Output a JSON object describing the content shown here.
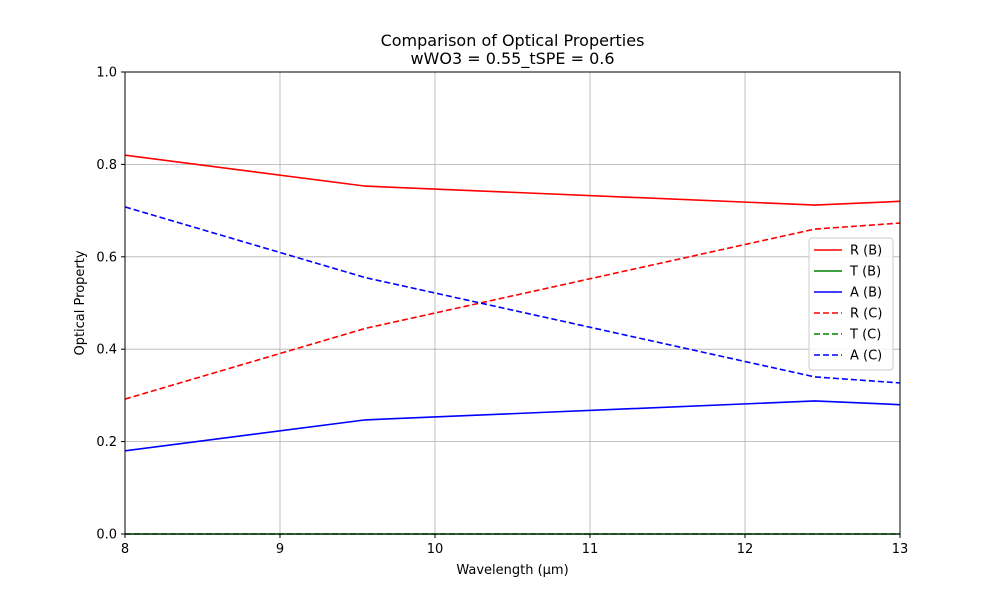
{
  "chart_data": {
    "type": "line",
    "title": "Comparison of Optical Properties",
    "subtitle": "wWO3 = 0.55_tSPE = 0.6",
    "xlabel": "Wavelength (µm)",
    "ylabel": "Optical Property",
    "xlim": [
      8,
      13
    ],
    "ylim": [
      0.0,
      1.0
    ],
    "x_ticks": [
      8,
      9,
      10,
      11,
      12,
      13
    ],
    "x_tick_labels": [
      "8",
      "9",
      "10",
      "11",
      "12",
      "13"
    ],
    "y_ticks": [
      0.0,
      0.2,
      0.4,
      0.6,
      0.8,
      1.0
    ],
    "y_tick_labels": [
      "0.0",
      "0.2",
      "0.4",
      "0.6",
      "0.8",
      "1.0"
    ],
    "grid": true,
    "legend_position": "center-right",
    "x": [
      8.0,
      9.55,
      12.45,
      13.0
    ],
    "series": [
      {
        "name": "R (B)",
        "color": "#ff0000",
        "dash": "solid",
        "values": [
          0.82,
          0.753,
          0.712,
          0.72
        ]
      },
      {
        "name": "T (B)",
        "color": "#008000",
        "dash": "solid",
        "values": [
          0.0,
          0.0,
          0.0,
          0.0
        ]
      },
      {
        "name": "A (B)",
        "color": "#0000ff",
        "dash": "solid",
        "values": [
          0.18,
          0.247,
          0.288,
          0.28
        ]
      },
      {
        "name": "R (C)",
        "color": "#ff0000",
        "dash": "dashed",
        "values": [
          0.292,
          0.445,
          0.66,
          0.673
        ]
      },
      {
        "name": "T (C)",
        "color": "#008000",
        "dash": "dashed",
        "values": [
          0.0,
          0.0,
          0.0,
          0.0
        ]
      },
      {
        "name": "A (C)",
        "color": "#0000ff",
        "dash": "dashed",
        "values": [
          0.708,
          0.555,
          0.34,
          0.327
        ]
      }
    ]
  }
}
